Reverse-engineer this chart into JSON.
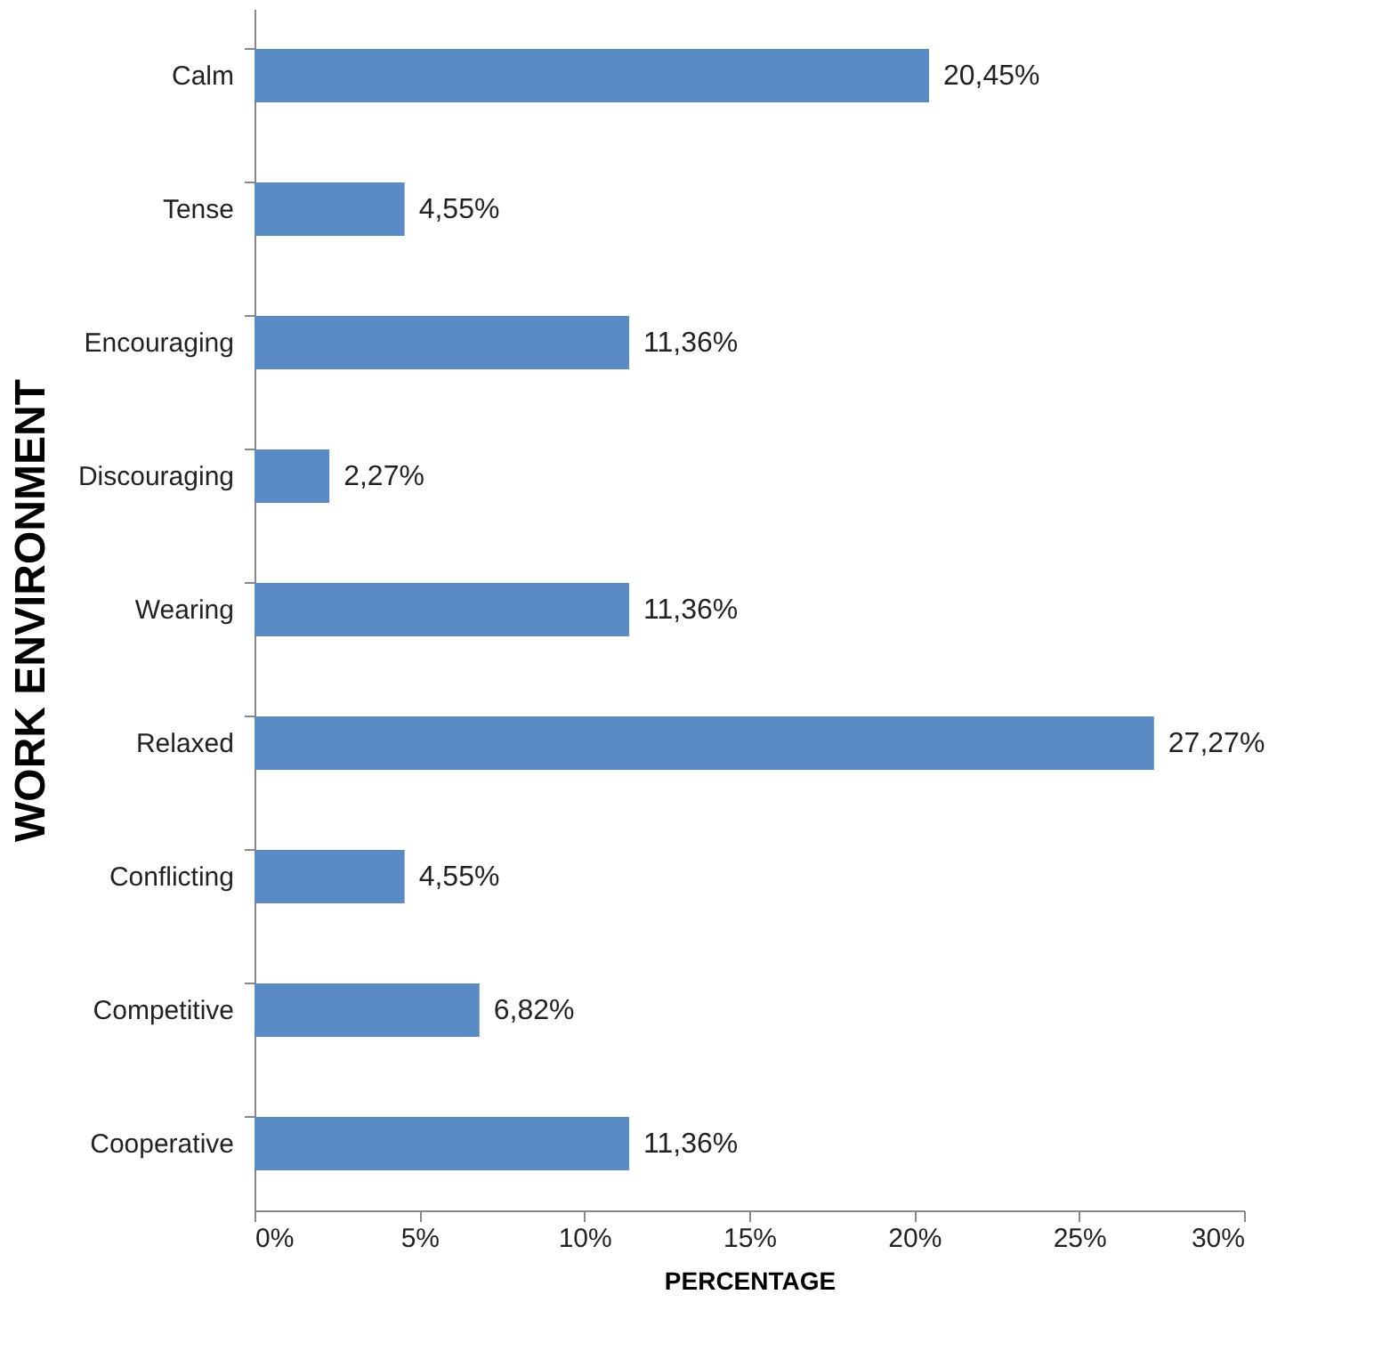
{
  "chart_data": {
    "type": "bar",
    "orientation": "horizontal",
    "xlabel": "PERCENTAGE",
    "ylabel": "WORK ENVIRONMENT",
    "categories": [
      "Calm",
      "Tense",
      "Encouraging",
      "Discouraging",
      "Wearing",
      "Relaxed",
      "Conflicting",
      "Competitive",
      "Cooperative"
    ],
    "values": [
      20.45,
      4.55,
      11.36,
      2.27,
      11.36,
      27.27,
      4.55,
      6.82,
      11.36
    ],
    "value_labels": [
      "20,45%",
      "4,55%",
      "11,36%",
      "2,27%",
      "11,36%",
      "27,27%",
      "4,55%",
      "6,82%",
      "11,36%"
    ],
    "color": "#5b8bc5",
    "xlim": [
      0,
      30
    ],
    "xticks": [
      {
        "value": 0,
        "label": "0%"
      },
      {
        "value": 5,
        "label": "5%"
      },
      {
        "value": 10,
        "label": "10%"
      },
      {
        "value": 15,
        "label": "15%"
      },
      {
        "value": 20,
        "label": "20%"
      },
      {
        "value": 25,
        "label": "25%"
      },
      {
        "value": 30,
        "label": "30%"
      }
    ],
    "grid": false
  }
}
